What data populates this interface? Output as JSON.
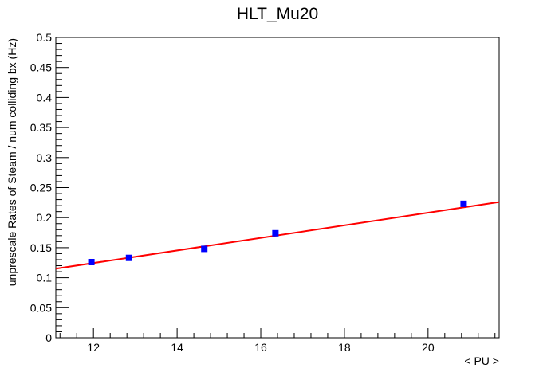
{
  "chart_data": {
    "type": "scatter",
    "title": "HLT_Mu20",
    "xlabel": "< PU >",
    "ylabel": "unprescale Rates of Steam / num colliding bx (Hz)",
    "xlim": [
      11.1,
      21.7
    ],
    "ylim": [
      0,
      0.5
    ],
    "x_ticks": [
      12,
      14,
      16,
      18,
      20
    ],
    "y_ticks": [
      0,
      0.05,
      0.1,
      0.15,
      0.2,
      0.25,
      0.3,
      0.35,
      0.4,
      0.45,
      0.5
    ],
    "x_tick_labels": [
      "12",
      "14",
      "16",
      "18",
      "20"
    ],
    "y_tick_labels": [
      "0",
      "0.05",
      "0.1",
      "0.15",
      "0.2",
      "0.25",
      "0.3",
      "0.35",
      "0.4",
      "0.45",
      "0.5"
    ],
    "grid": false,
    "series": [
      {
        "type": "scatter",
        "color": "#0000ff",
        "marker": "square",
        "x": [
          11.95,
          12.85,
          14.65,
          16.35,
          20.85
        ],
        "y": [
          0.126,
          0.133,
          0.148,
          0.174,
          0.223
        ]
      },
      {
        "type": "line",
        "color": "#ff0000",
        "x": [
          11.1,
          21.7
        ],
        "y": [
          0.115,
          0.226
        ]
      }
    ]
  }
}
